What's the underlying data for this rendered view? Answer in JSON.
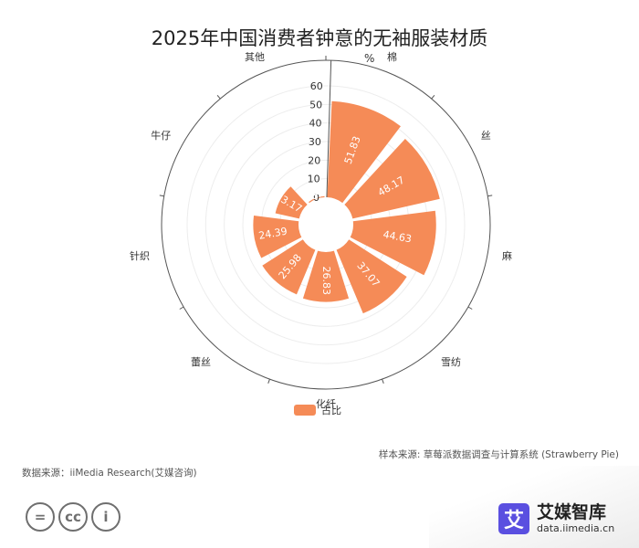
{
  "chart_data": {
    "type": "polar-bar",
    "title": "2025年中国消费者钟意的无袖服装材质",
    "unit_label": "%",
    "radial_axis": {
      "min": 0,
      "max": 60,
      "ticks": [
        0,
        10,
        20,
        30,
        40,
        50,
        60
      ]
    },
    "categories": [
      "棉",
      "丝",
      "麻",
      "雪纺",
      "化纤",
      "蕾丝",
      "针织",
      "牛仔",
      "其他"
    ],
    "series": [
      {
        "name": "占比",
        "values": [
          51.83,
          48.17,
          44.63,
          37.07,
          26.83,
          25.98,
          24.39,
          13.17,
          0.61
        ]
      }
    ],
    "legend": {
      "position": "bottom",
      "label": "占比"
    },
    "bar_color": "#f58b57"
  },
  "footer": {
    "sample_note": "样本来源: 草莓派数据调查与计算系统 (Strawberry Pie)",
    "source_note": "数据来源：iiMedia Research(艾媒咨询)"
  },
  "license_icons": [
    {
      "icon": "equals-icon",
      "glyph": "="
    },
    {
      "icon": "cc-icon",
      "glyph": "cc"
    },
    {
      "icon": "person-icon",
      "glyph": "i"
    }
  ],
  "brand": {
    "logo_glyph": "艾",
    "name": "艾媒智库",
    "url": "data.iimedia.cn"
  }
}
